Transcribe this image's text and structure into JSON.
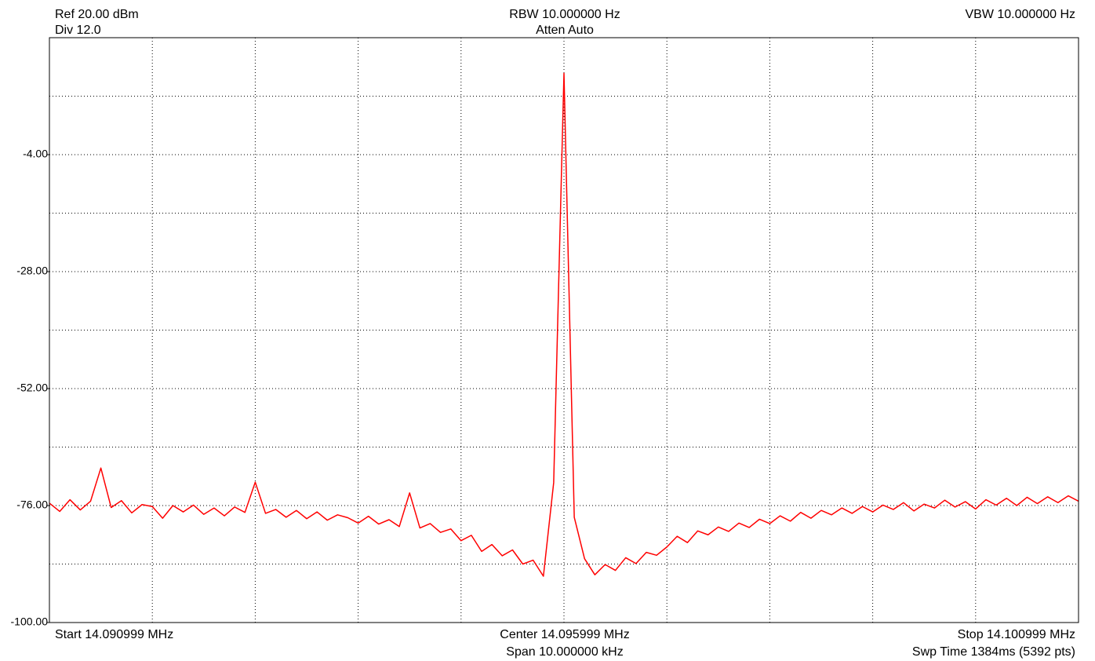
{
  "chart_data": {
    "type": "line",
    "header": {
      "ref": "Ref 20.00 dBm",
      "div": "Div 12.0",
      "rbw": "RBW 10.000000 Hz",
      "atten": "Atten Auto",
      "vbw": "VBW 10.000000 Hz"
    },
    "footer": {
      "start": "Start 14.090999 MHz",
      "center": "Center 14.095999 MHz",
      "span": "Span 10.000000 kHz",
      "stop": "Stop 14.100999 MHz",
      "sweep": "Swp Time 1384ms (5392 pts)"
    },
    "color": "#ff0000",
    "ylim": [
      -100,
      20
    ],
    "yticks": [
      {
        "value": -4,
        "label": "-4.00"
      },
      {
        "value": -28,
        "label": "-28.00"
      },
      {
        "value": -52,
        "label": "-52.00"
      },
      {
        "value": -76,
        "label": "-76.00"
      },
      {
        "value": -100,
        "label": "-100.00"
      }
    ],
    "xlim": [
      14.090999,
      14.100999
    ],
    "grid": true,
    "x": [
      14.090999,
      14.091099,
      14.091199,
      14.091299,
      14.091399,
      14.091499,
      14.091599,
      14.091699,
      14.091799,
      14.091899,
      14.091999,
      14.092099,
      14.092199,
      14.092299,
      14.092399,
      14.092499,
      14.092599,
      14.092699,
      14.092799,
      14.092899,
      14.092999,
      14.093099,
      14.093199,
      14.093299,
      14.093399,
      14.093499,
      14.093599,
      14.093699,
      14.093799,
      14.093899,
      14.093999,
      14.094099,
      14.094199,
      14.094299,
      14.094399,
      14.094499,
      14.094599,
      14.094699,
      14.094799,
      14.094899,
      14.094999,
      14.095099,
      14.095199,
      14.095299,
      14.095399,
      14.095499,
      14.095599,
      14.095699,
      14.095799,
      14.095899,
      14.095999,
      14.096099,
      14.096199,
      14.096299,
      14.096399,
      14.096499,
      14.096599,
      14.096699,
      14.096799,
      14.096899,
      14.096999,
      14.097099,
      14.097199,
      14.097299,
      14.097399,
      14.097499,
      14.097599,
      14.097699,
      14.097799,
      14.097899,
      14.097999,
      14.098099,
      14.098199,
      14.098299,
      14.098399,
      14.098499,
      14.098599,
      14.098699,
      14.098799,
      14.098899,
      14.098999,
      14.099099,
      14.099199,
      14.099299,
      14.099399,
      14.099499,
      14.099599,
      14.099699,
      14.099799,
      14.099899,
      14.099999,
      14.100099,
      14.100199,
      14.100299,
      14.100399,
      14.100499,
      14.100599,
      14.100699,
      14.100799,
      14.100899,
      14.100999
    ],
    "values": [
      -75.5,
      -77.2,
      -74.8,
      -76.9,
      -75.1,
      -68.3,
      -76.4,
      -75.0,
      -77.5,
      -75.8,
      -76.2,
      -78.6,
      -76.0,
      -77.3,
      -75.9,
      -77.8,
      -76.5,
      -78.1,
      -76.3,
      -77.4,
      -71.2,
      -77.6,
      -76.8,
      -78.4,
      -77.0,
      -78.7,
      -77.3,
      -79.0,
      -77.9,
      -78.5,
      -79.6,
      -78.2,
      -79.8,
      -78.9,
      -80.3,
      -73.4,
      -80.6,
      -79.7,
      -81.5,
      -80.8,
      -83.2,
      -82.1,
      -85.4,
      -84.0,
      -86.3,
      -85.1,
      -88.0,
      -87.2,
      -90.5,
      -71.3,
      12.7,
      -78.4,
      -86.9,
      -90.2,
      -88.1,
      -89.3,
      -86.7,
      -87.9,
      -85.6,
      -86.2,
      -84.5,
      -82.3,
      -83.6,
      -81.2,
      -82.0,
      -80.4,
      -81.3,
      -79.6,
      -80.5,
      -78.8,
      -79.7,
      -78.1,
      -79.2,
      -77.4,
      -78.6,
      -77.0,
      -77.9,
      -76.5,
      -77.6,
      -76.2,
      -77.3,
      -75.9,
      -76.8,
      -75.4,
      -77.1,
      -75.7,
      -76.5,
      -74.9,
      -76.3,
      -75.2,
      -76.7,
      -74.8,
      -75.9,
      -74.5,
      -76.0,
      -74.3,
      -75.6,
      -74.2,
      -75.4,
      -74.0,
      -75.1
    ]
  }
}
